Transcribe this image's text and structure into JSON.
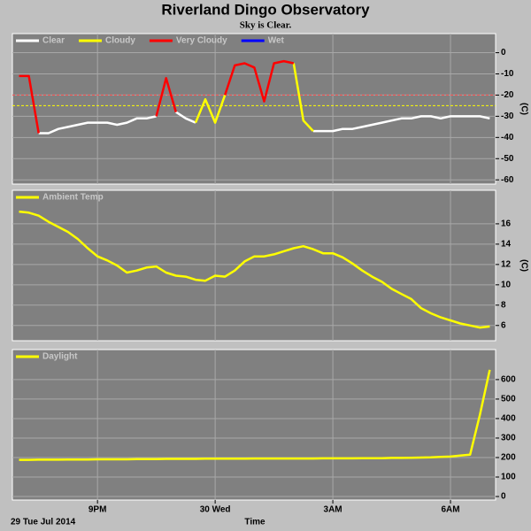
{
  "header": {
    "title": "Riverland Dingo Observatory",
    "subtitle": "Sky is Clear."
  },
  "footer": {
    "date": "29 Tue Jul 2014",
    "x_label": "Time"
  },
  "chart_data": [
    {
      "type": "line",
      "y_label": "(C)",
      "grid": true,
      "legend": "top-left",
      "xlim": [
        18.83,
        31.15
      ],
      "ylim": [
        -62,
        9
      ],
      "yticks": [
        0,
        -10,
        -20,
        -30,
        -40,
        -50,
        -60
      ],
      "thresholds": [
        {
          "value": -20,
          "color": "#ff5050"
        },
        {
          "value": -25,
          "color": "#ffff00"
        }
      ],
      "x": [
        19,
        19.25,
        19.5,
        19.75,
        20,
        20.25,
        20.5,
        20.75,
        21,
        21.25,
        21.5,
        21.75,
        22,
        22.25,
        22.5,
        22.75,
        23,
        23.25,
        23.5,
        23.75,
        24,
        24.25,
        24.5,
        24.75,
        25,
        25.25,
        25.5,
        25.75,
        26,
        26.25,
        26.5,
        26.75,
        27,
        27.25,
        27.5,
        27.75,
        28,
        28.25,
        28.5,
        28.75,
        29,
        29.25,
        29.5,
        29.75,
        30,
        30.25,
        30.5,
        30.75,
        31
      ],
      "series": [
        {
          "name": "Clear",
          "color": "#ffffff",
          "values": [
            null,
            null,
            -38,
            -38,
            -36,
            -35,
            -34,
            -33,
            -33,
            -33,
            -34,
            -33,
            -31,
            -31,
            -30,
            null,
            -28,
            -31,
            -33,
            null,
            null,
            null,
            null,
            null,
            null,
            null,
            null,
            null,
            null,
            null,
            -37,
            -37,
            -37,
            -36,
            -36,
            -35,
            -34,
            -33,
            -32,
            -31,
            -31,
            -30,
            -30,
            -31,
            -30,
            -30,
            -30,
            -30,
            -31
          ]
        },
        {
          "name": "Cloudy",
          "color": "#ffff00",
          "values": [
            null,
            null,
            null,
            null,
            null,
            null,
            null,
            null,
            null,
            null,
            null,
            null,
            null,
            null,
            null,
            null,
            null,
            null,
            -33,
            -22,
            -33,
            -20,
            null,
            null,
            null,
            null,
            null,
            null,
            -5,
            -32,
            -37,
            null,
            null,
            null,
            null,
            null,
            null,
            null,
            null,
            null,
            null,
            null,
            null,
            null,
            null,
            null,
            null,
            null,
            null
          ]
        },
        {
          "name": "Very Cloudy",
          "color": "#ff0000",
          "values": [
            -11,
            -11,
            -38,
            null,
            null,
            null,
            null,
            null,
            null,
            null,
            null,
            null,
            null,
            null,
            -30,
            -12,
            -28,
            null,
            null,
            null,
            null,
            -20,
            -6,
            -5,
            -7,
            -23,
            -5,
            -4,
            -5,
            null,
            null,
            null,
            null,
            null,
            null,
            null,
            null,
            null,
            null,
            null,
            null,
            null,
            null,
            null,
            null,
            null,
            null,
            null,
            null
          ]
        },
        {
          "name": "Wet",
          "color": "#0000ff",
          "values": [
            null,
            null,
            null,
            null,
            null,
            null,
            null,
            null,
            null,
            null,
            null,
            null,
            null,
            null,
            null,
            null,
            null,
            null,
            null,
            null,
            null,
            null,
            null,
            null,
            null,
            null,
            null,
            null,
            null,
            null,
            null,
            null,
            null,
            null,
            null,
            null,
            null,
            null,
            null,
            null,
            null,
            null,
            null,
            null,
            null,
            null,
            null,
            null,
            null
          ]
        }
      ]
    },
    {
      "type": "line",
      "y_label": "(C)",
      "grid": true,
      "legend": "top-left",
      "xlim": [
        18.83,
        31.15
      ],
      "ylim": [
        4.5,
        19.3
      ],
      "yticks": [
        6,
        8,
        10,
        12,
        14,
        16
      ],
      "x": [
        19,
        19.25,
        19.5,
        19.75,
        20,
        20.25,
        20.5,
        20.75,
        21,
        21.25,
        21.5,
        21.75,
        22,
        22.25,
        22.5,
        22.75,
        23,
        23.25,
        23.5,
        23.75,
        24,
        24.25,
        24.5,
        24.75,
        25,
        25.25,
        25.5,
        25.75,
        26,
        26.25,
        26.5,
        26.75,
        27,
        27.25,
        27.5,
        27.75,
        28,
        28.25,
        28.5,
        28.75,
        29,
        29.25,
        29.5,
        29.75,
        30,
        30.25,
        30.5,
        30.75,
        31
      ],
      "series": [
        {
          "name": "Ambient Temp",
          "color": "#ffff00",
          "values": [
            17.2,
            17.1,
            16.8,
            16.2,
            15.7,
            15.2,
            14.5,
            13.6,
            12.8,
            12.4,
            11.9,
            11.2,
            11.4,
            11.7,
            11.8,
            11.2,
            10.9,
            10.8,
            10.5,
            10.4,
            10.9,
            10.8,
            11.4,
            12.3,
            12.8,
            12.8,
            13.0,
            13.3,
            13.6,
            13.8,
            13.5,
            13.1,
            13.1,
            12.7,
            12.1,
            11.4,
            10.8,
            10.3,
            9.6,
            9.1,
            8.6,
            7.7,
            7.2,
            6.8,
            6.5,
            6.2,
            6.0,
            5.8,
            5.9
          ]
        }
      ]
    },
    {
      "type": "line",
      "grid": true,
      "legend": "top-left",
      "xlim": [
        18.83,
        31.15
      ],
      "ylim": [
        -18,
        754
      ],
      "yticks": [
        0,
        100,
        200,
        300,
        400,
        500,
        600
      ],
      "xticks": [
        {
          "value": 21,
          "label": "9PM"
        },
        {
          "value": 24,
          "label": "30 Wed"
        },
        {
          "value": 27,
          "label": "3AM"
        },
        {
          "value": 30,
          "label": "6AM"
        }
      ],
      "x": [
        19,
        19.25,
        19.5,
        19.75,
        20,
        20.25,
        20.5,
        20.75,
        21,
        21.25,
        21.5,
        21.75,
        22,
        22.25,
        22.5,
        22.75,
        23,
        23.25,
        23.5,
        23.75,
        24,
        24.25,
        24.5,
        24.75,
        25,
        25.25,
        25.5,
        25.75,
        26,
        26.25,
        26.5,
        26.75,
        27,
        27.25,
        27.5,
        27.75,
        28,
        28.25,
        28.5,
        28.75,
        29,
        29.25,
        29.5,
        29.75,
        30,
        30.25,
        30.5,
        30.75,
        31
      ],
      "series": [
        {
          "name": "Daylight",
          "color": "#ffff00",
          "values": [
            188,
            188,
            189,
            189,
            189,
            190,
            190,
            190,
            191,
            191,
            191,
            191,
            192,
            192,
            192,
            193,
            193,
            193,
            193,
            194,
            194,
            194,
            194,
            194,
            195,
            195,
            195,
            195,
            195,
            195,
            195,
            196,
            196,
            196,
            196,
            197,
            197,
            197,
            198,
            198,
            199,
            200,
            201,
            203,
            205,
            210,
            215,
            420,
            650
          ]
        }
      ]
    }
  ]
}
